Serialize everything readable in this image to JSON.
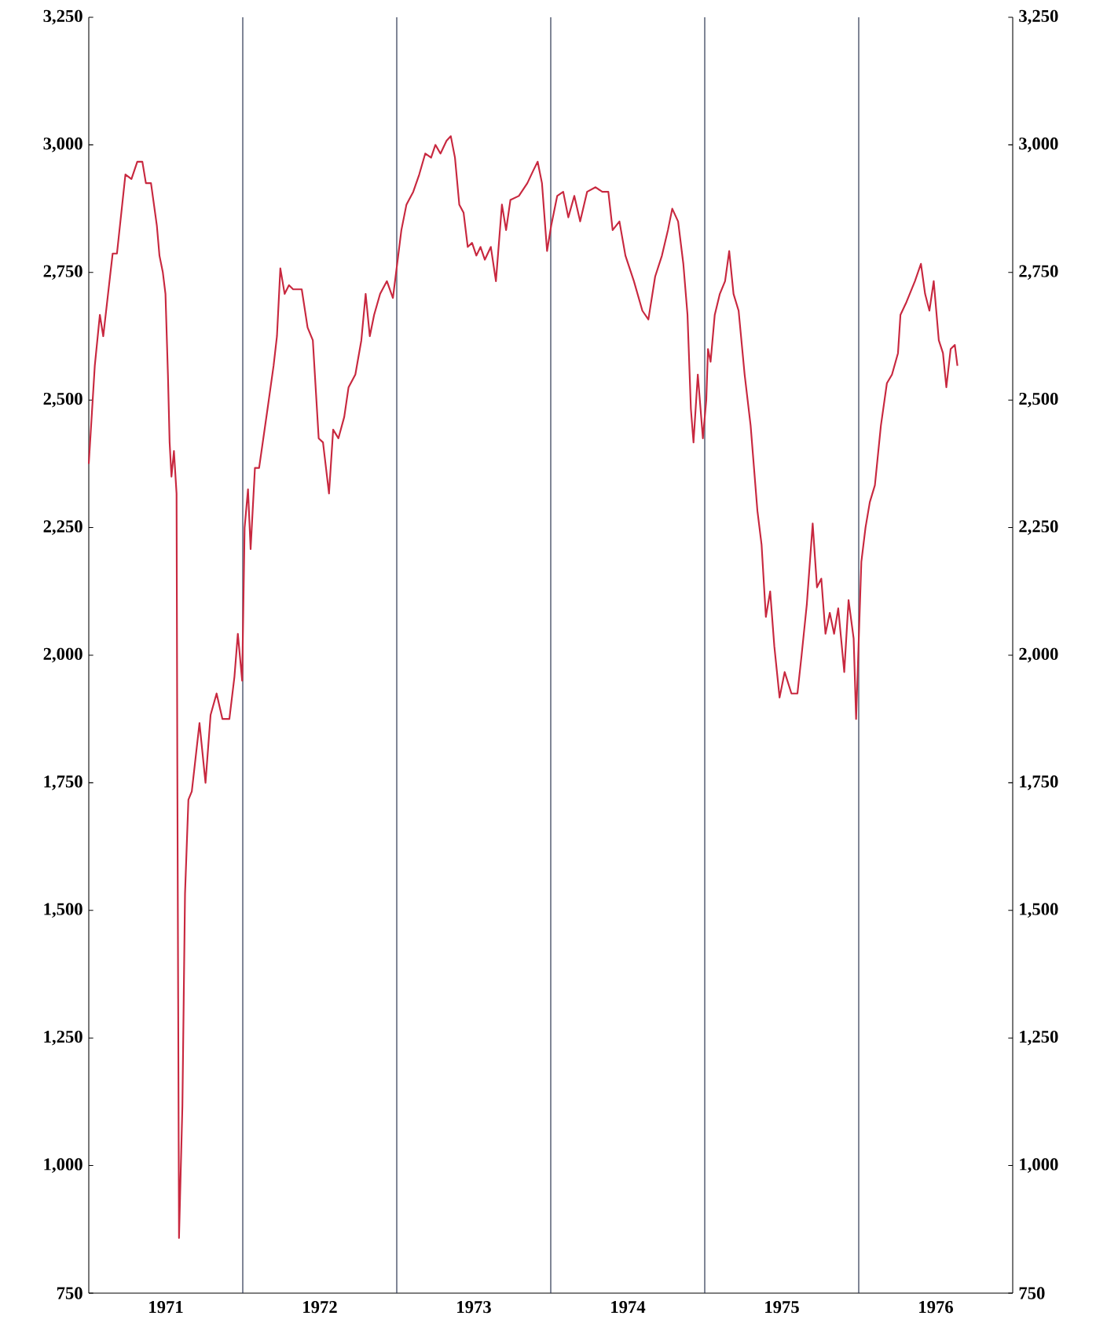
{
  "chart_data": {
    "type": "line",
    "x": [
      1971.0,
      1971.039,
      1971.072,
      1971.094,
      1971.138,
      1971.155,
      1971.183,
      1971.238,
      1971.277,
      1971.315,
      1971.348,
      1971.371,
      1971.404,
      1971.442,
      1971.459,
      1971.481,
      1971.498,
      1971.514,
      1971.525,
      1971.537,
      1971.553,
      1971.57,
      1971.575,
      1971.586,
      1971.608,
      1971.625,
      1971.647,
      1971.669,
      1971.719,
      1971.758,
      1971.791,
      1971.83,
      1971.868,
      1971.913,
      1971.946,
      1971.968,
      1971.996,
      1972.012,
      1972.034,
      1972.051,
      1972.079,
      1972.106,
      1972.161,
      1972.2,
      1972.222,
      1972.244,
      1972.272,
      1972.3,
      1972.327,
      1972.383,
      1972.421,
      1972.455,
      1972.493,
      1972.521,
      1972.56,
      1972.587,
      1972.621,
      1972.659,
      1972.687,
      1972.731,
      1972.77,
      1972.798,
      1972.825,
      1972.853,
      1972.892,
      1972.936,
      1972.975,
      1973.03,
      1973.063,
      1973.107,
      1973.146,
      1973.185,
      1973.223,
      1973.251,
      1973.284,
      1973.323,
      1973.351,
      1973.378,
      1973.406,
      1973.434,
      1973.461,
      1973.489,
      1973.517,
      1973.544,
      1973.572,
      1973.611,
      1973.644,
      1973.683,
      1973.71,
      1973.738,
      1973.793,
      1973.848,
      1973.887,
      1973.915,
      1973.943,
      1973.976,
      1974.003,
      1974.042,
      1974.081,
      1974.114,
      1974.153,
      1974.191,
      1974.236,
      1974.291,
      1974.335,
      1974.374,
      1974.402,
      1974.446,
      1974.485,
      1974.54,
      1974.595,
      1974.634,
      1974.678,
      1974.722,
      1974.761,
      1974.789,
      1974.827,
      1974.861,
      1974.888,
      1974.91,
      1974.927,
      1974.955,
      1974.988,
      1975.01,
      1975.021,
      1975.038,
      1975.065,
      1975.098,
      1975.132,
      1975.159,
      1975.187,
      1975.22,
      1975.259,
      1975.298,
      1975.342,
      1975.369,
      1975.397,
      1975.425,
      1975.452,
      1975.486,
      1975.519,
      1975.563,
      1975.602,
      1975.629,
      1975.663,
      1975.701,
      1975.729,
      1975.757,
      1975.784,
      1975.812,
      1975.84,
      1975.867,
      1975.906,
      1975.934,
      1975.967,
      1975.983,
      1976.017,
      1976.044,
      1976.072,
      1976.105,
      1976.144,
      1976.183,
      1976.216,
      1976.255,
      1976.271,
      1976.31,
      1976.365,
      1976.404,
      1976.431,
      1976.459,
      1976.487,
      1976.52,
      1976.547,
      1976.569,
      1976.597,
      1976.624,
      1976.641
    ],
    "series": [
      {
        "color": "#c8283f",
        "values": [
          2375,
          2567,
          2667,
          2625,
          2742,
          2787,
          2787,
          2942,
          2933,
          2967,
          2967,
          2925,
          2925,
          2842,
          2783,
          2750,
          2708,
          2550,
          2417,
          2350,
          2400,
          2317,
          1783,
          858,
          1117,
          1533,
          1717,
          1733,
          1867,
          1750,
          1883,
          1925,
          1875,
          1875,
          1958,
          2042,
          1950,
          2250,
          2325,
          2208,
          2367,
          2367,
          2483,
          2567,
          2625,
          2758,
          2708,
          2725,
          2717,
          2717,
          2642,
          2617,
          2425,
          2417,
          2317,
          2442,
          2425,
          2467,
          2525,
          2550,
          2617,
          2708,
          2625,
          2667,
          2708,
          2733,
          2700,
          2833,
          2883,
          2908,
          2942,
          2983,
          2975,
          3000,
          2983,
          3008,
          3017,
          2975,
          2883,
          2867,
          2800,
          2808,
          2783,
          2800,
          2775,
          2800,
          2733,
          2883,
          2833,
          2892,
          2900,
          2925,
          2950,
          2967,
          2925,
          2792,
          2842,
          2900,
          2908,
          2858,
          2900,
          2850,
          2908,
          2917,
          2908,
          2908,
          2833,
          2850,
          2783,
          2733,
          2675,
          2658,
          2742,
          2783,
          2833,
          2875,
          2850,
          2767,
          2667,
          2483,
          2417,
          2550,
          2425,
          2500,
          2600,
          2575,
          2667,
          2708,
          2733,
          2792,
          2708,
          2675,
          2550,
          2450,
          2283,
          2217,
          2075,
          2125,
          2017,
          1917,
          1967,
          1925,
          1925,
          2000,
          2100,
          2258,
          2133,
          2150,
          2042,
          2083,
          2042,
          2092,
          1967,
          2108,
          2033,
          1875,
          2183,
          2250,
          2300,
          2333,
          2450,
          2533,
          2550,
          2592,
          2667,
          2692,
          2733,
          2767,
          2708,
          2675,
          2733,
          2617,
          2592,
          2525,
          2600,
          2608,
          2567
        ]
      }
    ],
    "xlim": [
      1971,
      1977
    ],
    "xticks": [
      {
        "value": 1971.5,
        "label": "1971"
      },
      {
        "value": 1972.5,
        "label": "1972"
      },
      {
        "value": 1973.5,
        "label": "1973"
      },
      {
        "value": 1974.5,
        "label": "1974"
      },
      {
        "value": 1975.5,
        "label": "1975"
      },
      {
        "value": 1976.5,
        "label": "1976"
      }
    ],
    "ylim": [
      750,
      3250
    ],
    "yticks": [
      750,
      {
        "value": 1000,
        "label": "1,000"
      },
      {
        "value": 1250,
        "label": "1,250"
      },
      {
        "value": 1500,
        "label": "1,500"
      },
      {
        "value": 1750,
        "label": "1,750"
      },
      {
        "value": 2000,
        "label": "2,000"
      },
      {
        "value": 2250,
        "label": "2,250"
      },
      {
        "value": 2500,
        "label": "2,500"
      },
      {
        "value": 2750,
        "label": "2,750"
      },
      {
        "value": 3000,
        "label": "3,000"
      },
      {
        "value": 3250,
        "label": "3,250"
      }
    ],
    "y2lim": [
      750,
      3250
    ],
    "y2ticks": [
      750,
      {
        "value": 1000,
        "label": "1,000"
      },
      {
        "value": 1250,
        "label": "1,250"
      },
      {
        "value": 1500,
        "label": "1,500"
      },
      {
        "value": 1750,
        "label": "1,750"
      },
      {
        "value": 2000,
        "label": "2,000"
      },
      {
        "value": 2250,
        "label": "2,250"
      },
      {
        "value": 2500,
        "label": "2,500"
      },
      {
        "value": 2750,
        "label": "2,750"
      },
      {
        "value": 3000,
        "label": "3,000"
      },
      {
        "value": 3250,
        "label": "3,250"
      }
    ],
    "ref_lines": [
      {
        "axis": "x",
        "value": 1972,
        "color": "#2b3550"
      },
      {
        "axis": "x",
        "value": 1973,
        "color": "#2b3550"
      },
      {
        "axis": "x",
        "value": 1974,
        "color": "#2b3550"
      },
      {
        "axis": "x",
        "value": 1975,
        "color": "#2b3550"
      },
      {
        "axis": "x",
        "value": 1976,
        "color": "#2b3550"
      }
    ]
  }
}
